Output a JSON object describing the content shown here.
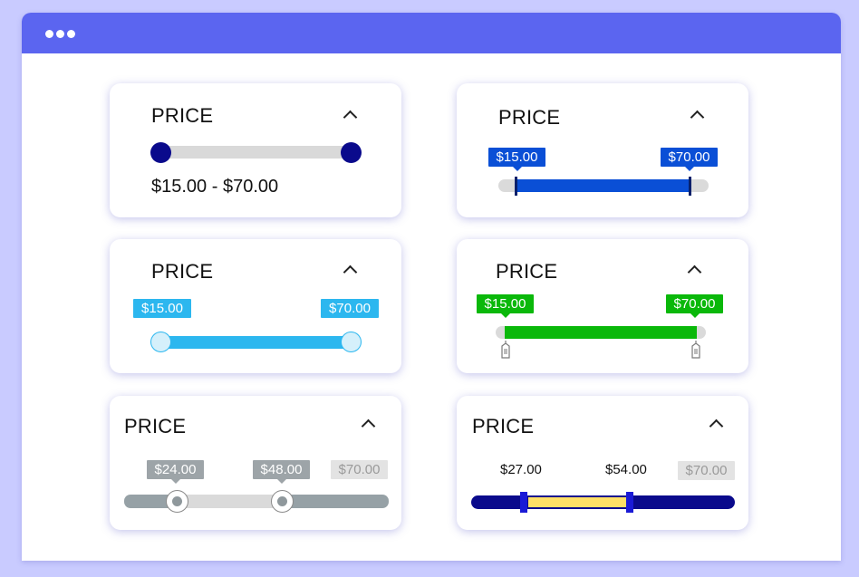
{
  "window": {
    "dots": [
      "dot",
      "dot",
      "dot"
    ]
  },
  "colors": {
    "titlebar": "#5b65f0",
    "navy": "#0a0a8c",
    "blue": "#0a4fd6",
    "sky": "#2cb7ef",
    "green": "#0ab80a",
    "gray": "#96a1a6",
    "yellow": "#ffe066"
  },
  "icons": {
    "collapse": "chevron-up-icon",
    "handle": "grip-handle-icon"
  },
  "cards": [
    {
      "title": "PRICE",
      "range_text": "$15.00 - $70.00",
      "selection": [
        0,
        1
      ]
    },
    {
      "title": "PRICE",
      "min_label": "$15.00",
      "max_label": "$70.00",
      "selection": [
        0,
        1
      ]
    },
    {
      "title": "PRICE",
      "min_label": "$15.00",
      "max_label": "$70.00",
      "selection": [
        0,
        1
      ]
    },
    {
      "title": "PRICE",
      "min_label": "$15.00",
      "max_label": "$70.00",
      "selection": [
        0,
        1
      ]
    },
    {
      "title": "PRICE",
      "low_label": "$24.00",
      "high_label": "$48.00",
      "max_label": "$70.00",
      "selection": [
        0.2,
        0.6
      ]
    },
    {
      "title": "PRICE",
      "low_label": "$27.00",
      "high_label": "$54.00",
      "max_label": "$70.00",
      "selection": [
        0.2,
        0.6
      ]
    }
  ]
}
